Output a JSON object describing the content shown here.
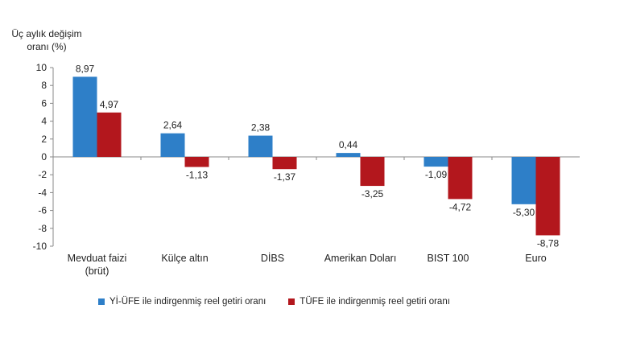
{
  "chart_data": {
    "type": "bar",
    "ylabel_line1": "Üç aylık değişim",
    "ylabel_line2": "oranı (%)",
    "ylim": [
      -10,
      10
    ],
    "yticks": [
      -10,
      -8,
      -6,
      -4,
      -2,
      0,
      2,
      4,
      6,
      8,
      10
    ],
    "grid": false,
    "legend_position": "bottom",
    "categories": [
      [
        "Mevduat faizi",
        "(brüt)"
      ],
      [
        "Külçe altın"
      ],
      [
        "DİBS"
      ],
      [
        "Amerikan Doları"
      ],
      [
        "BIST 100"
      ],
      [
        "Euro"
      ]
    ],
    "series": [
      {
        "name": "Yİ-ÜFE ile indirgenmiş reel getiri oranı",
        "color": "#2e7fc8",
        "values": [
          8.97,
          2.64,
          2.38,
          0.44,
          -1.09,
          -5.3
        ],
        "labels": [
          "8,97",
          "2,64",
          "2,38",
          "0,44",
          "-1,09",
          "-5,30"
        ]
      },
      {
        "name": "TÜFE ile indirgenmiş reel getiri oranı",
        "color": "#b3171d",
        "values": [
          4.97,
          -1.13,
          -1.37,
          -3.25,
          -4.72,
          -8.78
        ],
        "labels": [
          "4,97",
          "-1,13",
          "-1,37",
          "-3,25",
          "-4,72",
          "-8,78"
        ]
      }
    ]
  }
}
